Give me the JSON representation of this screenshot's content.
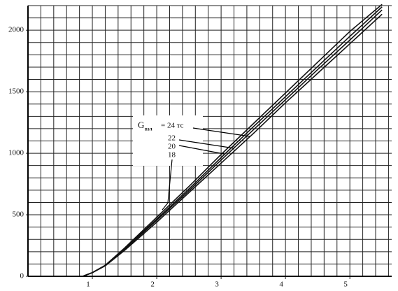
{
  "chart_data": {
    "type": "line",
    "x": [
      0.85,
      1.0,
      1.2,
      1.5,
      2,
      2.5,
      3,
      3.5,
      4,
      4.5,
      5,
      5.5
    ],
    "series": [
      {
        "name": "= 24 тс",
        "color": "#111111",
        "values": [
          0,
          30,
          90,
          230,
          480,
          730,
          990,
          1240,
          1490,
          1740,
          1990,
          2210
        ]
      },
      {
        "name": "22",
        "color": "#111111",
        "values": [
          0,
          30,
          88,
          225,
          465,
          710,
          965,
          1215,
          1460,
          1705,
          1950,
          2190
        ]
      },
      {
        "name": "20",
        "color": "#111111",
        "values": [
          0,
          30,
          87,
          218,
          455,
          695,
          945,
          1190,
          1435,
          1680,
          1920,
          2165
        ]
      },
      {
        "name": "18",
        "color": "#111111",
        "values": [
          0,
          30,
          85,
          210,
          440,
          680,
          920,
          1160,
          1410,
          1650,
          1890,
          2130
        ]
      }
    ],
    "legend_symbol": "G",
    "legend_subscript": "взл",
    "xlim": [
      0,
      5.65
    ],
    "ylim": [
      0,
      2200
    ],
    "xticks": [
      1,
      2,
      3,
      4,
      5
    ],
    "yticks": [
      0,
      500,
      1000,
      1500,
      2000
    ],
    "grid": {
      "x_step": 0.2,
      "y_step": 100
    }
  }
}
